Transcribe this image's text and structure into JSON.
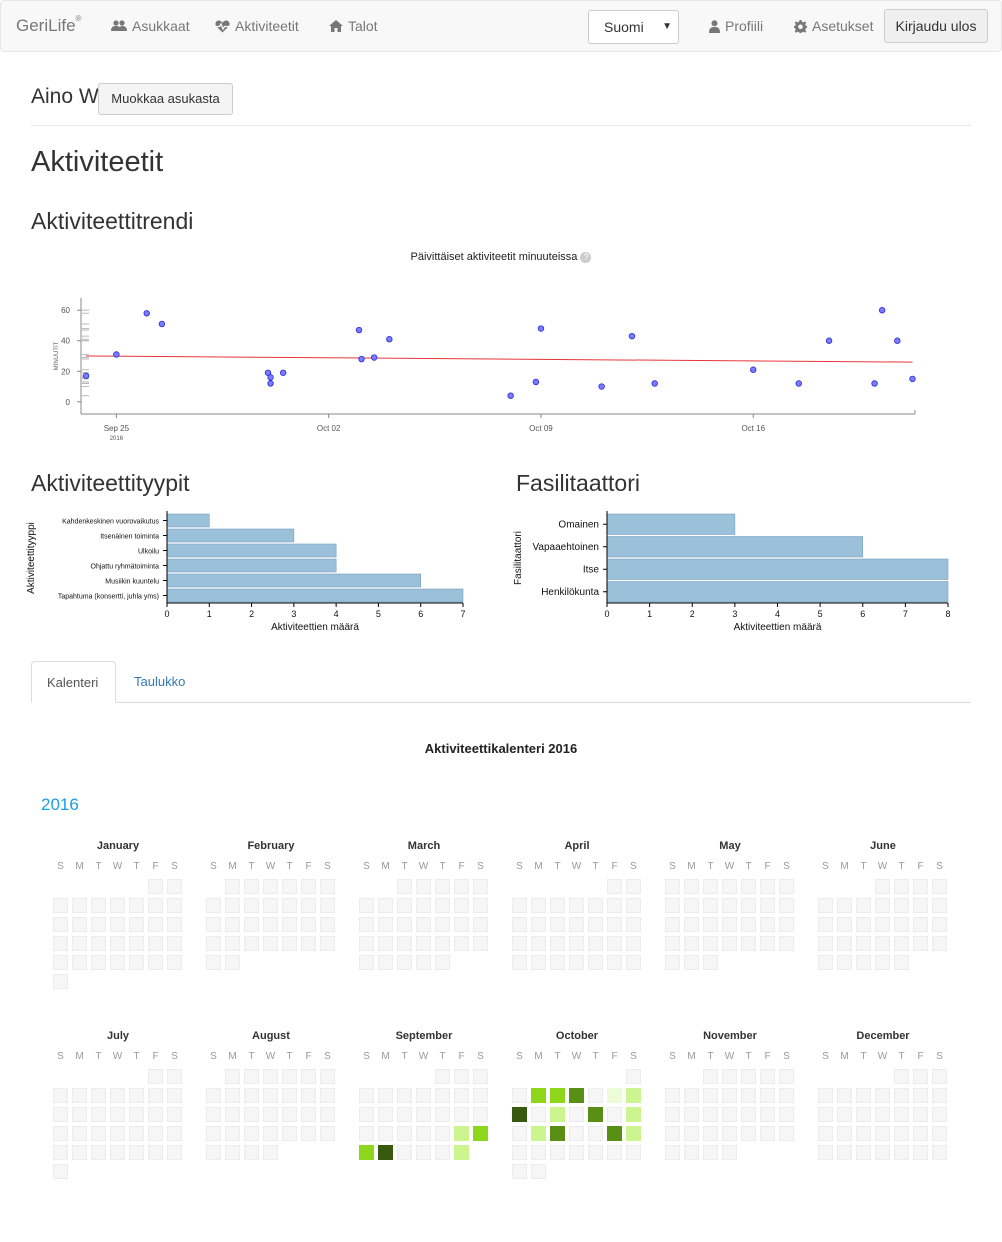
{
  "nav": {
    "brand": "GeriLife",
    "brand_mark": "®",
    "residents": "Asukkaat",
    "activities": "Aktiviteetit",
    "homes": "Talot",
    "language": "Suomi",
    "profile": "Profiili",
    "settings": "Asetukset",
    "logout": "Kirjaudu ulos"
  },
  "resident": {
    "name": "Aino W",
    "edit_label": "Muokkaa asukasta"
  },
  "headings": {
    "main": "Aktiviteetit",
    "trend": "Aktiviteettitrendi",
    "types": "Aktiviteettityypit",
    "facilitator": "Fasilitaattori"
  },
  "colors": {
    "point": "#7b7bff",
    "trend_line": "#e8343a",
    "bar": "#9ac0da",
    "calendar_scale": [
      "#385a0e",
      "#5a8f15",
      "#8dd61a",
      "#ccf590",
      "#edfcd7"
    ],
    "link": "#337ab7",
    "year": "#1a9ee6"
  },
  "trend_chart": {
    "title": "Päivittäiset aktiviteetit minuuteissa",
    "help_icon": "question-circle-icon",
    "ylabel": "MINUUTIT",
    "yticks": [
      "0",
      "20",
      "40",
      "60"
    ],
    "xticks": [
      "Sep 25",
      "Oct 02",
      "Oct 09",
      "Oct 16"
    ],
    "year_tick": "2016"
  },
  "chart_data": [
    {
      "type": "scatter",
      "title": "Päivittäiset aktiviteetit minuuteissa",
      "ylabel": "MINUUTIT",
      "ylim": [
        -8,
        68
      ],
      "xlim": [
        "2016-09-23 20:00",
        "2016-10-21 08:00"
      ],
      "points": [
        {
          "x": "2016-09-24",
          "y": 17
        },
        {
          "x": "2016-09-25",
          "y": 31
        },
        {
          "x": "2016-09-26",
          "y": 58
        },
        {
          "x": "2016-09-26 12:00",
          "y": 51
        },
        {
          "x": "2016-09-30",
          "y": 19
        },
        {
          "x": "2016-09-30 02:00",
          "y": 16
        },
        {
          "x": "2016-09-30 02:00",
          "y": 12
        },
        {
          "x": "2016-09-30 12:00",
          "y": 19
        },
        {
          "x": "2016-10-03",
          "y": 47
        },
        {
          "x": "2016-10-03 02:00",
          "y": 28
        },
        {
          "x": "2016-10-03 12:00",
          "y": 29
        },
        {
          "x": "2016-10-04",
          "y": 41
        },
        {
          "x": "2016-10-08",
          "y": 4
        },
        {
          "x": "2016-10-08 20:00",
          "y": 13
        },
        {
          "x": "2016-10-09",
          "y": 48
        },
        {
          "x": "2016-10-11",
          "y": 10
        },
        {
          "x": "2016-10-12",
          "y": 43
        },
        {
          "x": "2016-10-12 18:00",
          "y": 12
        },
        {
          "x": "2016-10-16",
          "y": 21
        },
        {
          "x": "2016-10-17 12:00",
          "y": 12
        },
        {
          "x": "2016-10-18 12:00",
          "y": 40
        },
        {
          "x": "2016-10-20",
          "y": 12
        },
        {
          "x": "2016-10-20 06:00",
          "y": 60
        },
        {
          "x": "2016-10-20 18:00",
          "y": 40
        },
        {
          "x": "2016-10-21 06:00",
          "y": 15
        }
      ],
      "trend": {
        "start": 30,
        "end": 26
      }
    },
    {
      "type": "bar",
      "orientation": "horizontal",
      "ylabel": "Aktiviteettityyppi",
      "xlabel": "Aktiviteettien määrä",
      "xlim": [
        0,
        7
      ],
      "xticks": [
        "0",
        "1",
        "2",
        "3",
        "4",
        "5",
        "6",
        "7"
      ],
      "categories": [
        "Kahdenkeskinen vuorovaikutus",
        "Itsenäinen toiminta",
        "Ulkoilu",
        "Ohjattu ryhmätoiminta",
        "Musiikin kuuntelu",
        "Tapahtuma (konsertti, juhla yms)"
      ],
      "values": [
        1,
        3,
        4,
        4,
        6,
        7
      ]
    },
    {
      "type": "bar",
      "orientation": "horizontal",
      "ylabel": "Fasilitaattori",
      "xlabel": "Aktiviteettien määrä",
      "xlim": [
        0,
        8
      ],
      "xticks": [
        "0",
        "1",
        "2",
        "3",
        "4",
        "5",
        "6",
        "7",
        "8"
      ],
      "categories": [
        "Omainen",
        "Vapaaehtoinen",
        "Itse",
        "Henkilökunta"
      ],
      "values": [
        3,
        6,
        8,
        8
      ]
    }
  ],
  "tabs": {
    "calendar": "Kalenteri",
    "table": "Taulukko"
  },
  "calendar": {
    "title": "Aktiviteettikalenteri 2016",
    "year": "2016",
    "year_number": 2016,
    "weekdays": [
      "S",
      "M",
      "T",
      "W",
      "T",
      "F",
      "S"
    ],
    "months": [
      "January",
      "February",
      "March",
      "April",
      "May",
      "June",
      "July",
      "August",
      "September",
      "October",
      "November",
      "December"
    ],
    "active_days": {
      "2016-09-23": 3,
      "2016-09-24": 2,
      "2016-09-25": 2,
      "2016-09-26": 0,
      "2016-09-30": 3,
      "2016-10-03": 2,
      "2016-10-04": 2,
      "2016-10-05": 1,
      "2016-10-07": 4,
      "2016-10-08": 3,
      "2016-10-09": 0,
      "2016-10-11": 3,
      "2016-10-13": 1,
      "2016-10-15": 3,
      "2016-10-17": 3,
      "2016-10-18": 1,
      "2016-10-21": 1,
      "2016-10-22": 3
    }
  }
}
